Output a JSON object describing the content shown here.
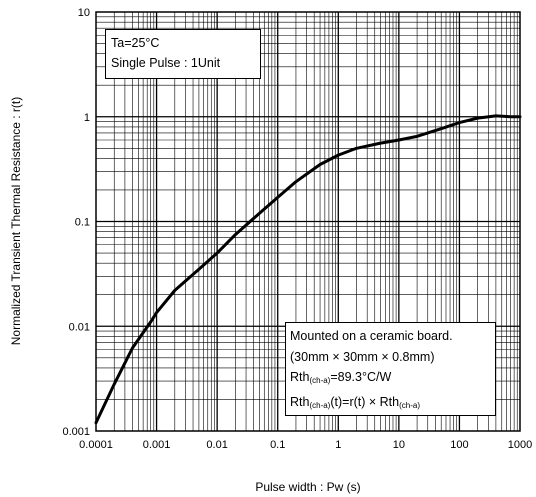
{
  "chart_data": {
    "type": "line",
    "xscale": "log",
    "yscale": "log",
    "xlim": [
      0.0001,
      1000
    ],
    "ylim": [
      0.001,
      10
    ],
    "grid": true,
    "xlabel": "Pulse width : Pw (s)",
    "ylabel": "Normalized Transient Thermal Resistance : r(t)",
    "x_ticks": [
      "0.0001",
      "0.001",
      "0.01",
      "0.1",
      "1",
      "10",
      "100",
      "1000"
    ],
    "y_ticks": [
      "0.001",
      "0.01",
      "0.1",
      "1",
      "10"
    ],
    "series": [
      {
        "x": [
          0.0001,
          0.0002,
          0.0004,
          0.0008,
          0.001,
          0.002,
          0.005,
          0.01,
          0.02,
          0.05,
          0.1,
          0.2,
          0.5,
          1,
          2,
          5,
          10,
          20,
          50,
          100,
          200,
          400,
          700,
          1000
        ],
        "y": [
          0.0012,
          0.0028,
          0.0062,
          0.011,
          0.0135,
          0.022,
          0.035,
          0.05,
          0.075,
          0.12,
          0.17,
          0.24,
          0.35,
          0.43,
          0.5,
          0.56,
          0.6,
          0.65,
          0.77,
          0.88,
          0.97,
          1.02,
          1.0,
          1.0
        ]
      }
    ],
    "annotations": {
      "top_left": {
        "line1": "Ta=25°C",
        "line2": "Single Pulse : 1Unit"
      },
      "bottom_right": {
        "line1": "Mounted on a ceramic board.",
        "line2": "(30mm × 30mm × 0.8mm)",
        "line3_pre": "Rth",
        "line3_sub": "(ch-a)",
        "line3_post": "=89.3°C/W",
        "line4_pre": "Rth",
        "line4_sub": "(ch-a)",
        "line4_mid": "(t)=r(t) × Rth",
        "line4_sub2": "(ch-a)"
      }
    }
  }
}
